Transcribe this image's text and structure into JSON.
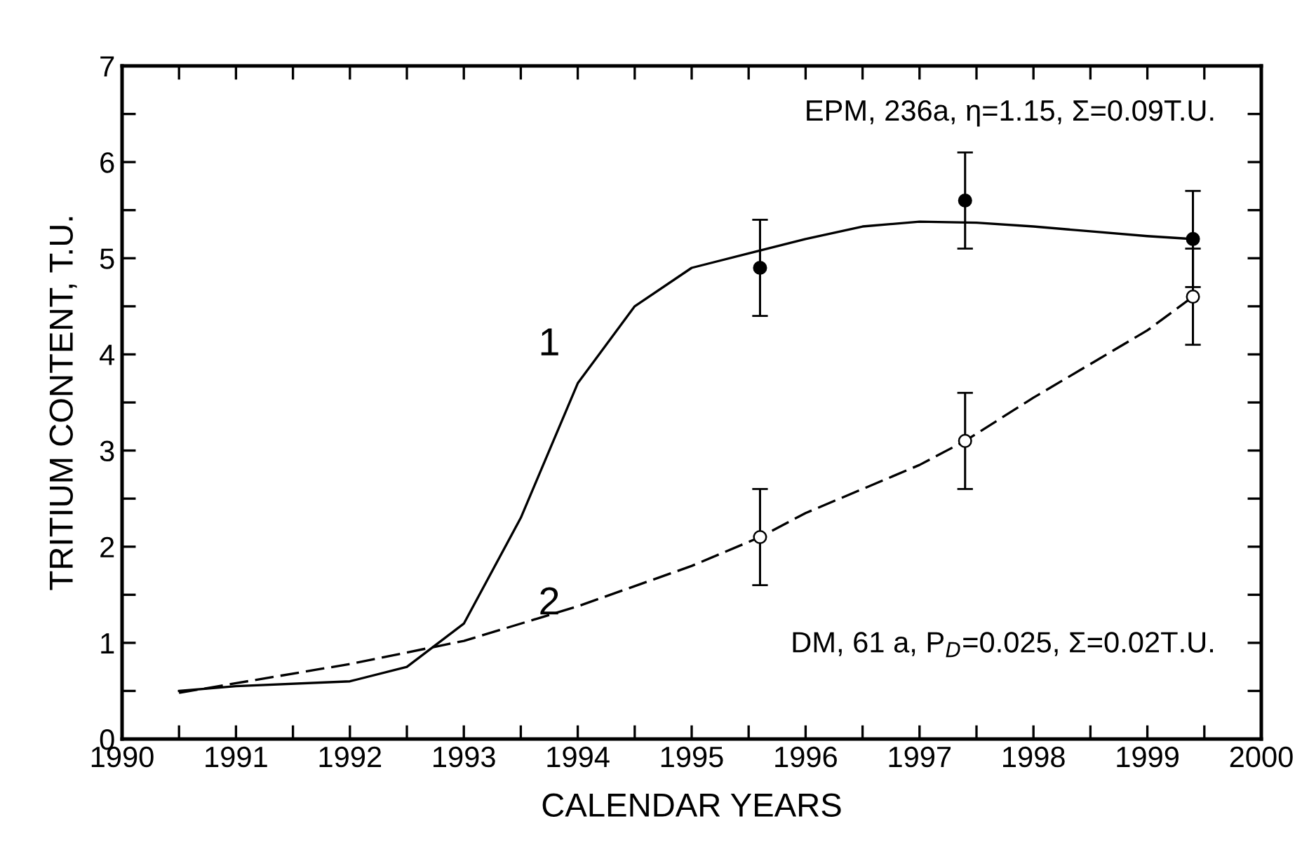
{
  "chart_data": {
    "type": "line",
    "xlabel": "CALENDAR YEARS",
    "ylabel": "TRITIUM CONTENT, T.U.",
    "xlim": [
      1990,
      2000
    ],
    "ylim": [
      0,
      7
    ],
    "xticks": [
      1990,
      {
        "value": 1990.5,
        "label": null
      },
      1991,
      {
        "value": 1991.5,
        "label": null
      },
      1992,
      {
        "value": 1992.5,
        "label": null
      },
      1993,
      {
        "value": 1993.5,
        "label": null
      },
      1994,
      {
        "value": 1994.5,
        "label": null
      },
      1995,
      {
        "value": 1995.5,
        "label": null
      },
      1996,
      {
        "value": 1996.5,
        "label": null
      },
      1997,
      {
        "value": 1997.5,
        "label": null
      },
      1998,
      {
        "value": 1998.5,
        "label": null
      },
      1999,
      {
        "value": 1999.5,
        "label": null
      },
      2000
    ],
    "yticks": [
      0,
      {
        "value": 0.5,
        "label": null
      },
      1,
      {
        "value": 1.5,
        "label": null
      },
      2,
      {
        "value": 2.5,
        "label": null
      },
      3,
      {
        "value": 3.5,
        "label": null
      },
      4,
      {
        "value": 4.5,
        "label": null
      },
      5,
      {
        "value": 5.5,
        "label": null
      },
      6,
      {
        "value": 6.5,
        "label": null
      },
      7
    ],
    "grid": false,
    "series": [
      {
        "color": "#000000",
        "line_style": "solid",
        "marker": "none",
        "x": [
          1990.5,
          1991,
          1992,
          1992.5,
          1993,
          1993.5,
          1994,
          1994.5,
          1995,
          1995.5,
          1996,
          1996.5,
          1997,
          1997.5,
          1998,
          1998.5,
          1999,
          1999.4
        ],
        "values": [
          0.5,
          0.55,
          0.6,
          0.75,
          1.2,
          2.3,
          3.7,
          4.5,
          4.9,
          5.05,
          5.2,
          5.33,
          5.38,
          5.37,
          5.33,
          5.28,
          5.23,
          5.2
        ]
      },
      {
        "color": "#000000",
        "line_style": "dashed",
        "marker": "none",
        "x": [
          1990.5,
          1991,
          1992,
          1993,
          1994,
          1995,
          1995.6,
          1996,
          1997,
          1997.4,
          1998,
          1999,
          1999.4
        ],
        "values": [
          0.48,
          0.58,
          0.78,
          1.02,
          1.38,
          1.8,
          2.1,
          2.35,
          2.85,
          3.1,
          3.55,
          4.25,
          4.6
        ]
      },
      {
        "type": "scatter",
        "color": "#000000",
        "marker": "circle",
        "x": [
          1995.6,
          1997.4,
          1999.4
        ],
        "values": [
          4.9,
          5.6,
          5.2
        ],
        "errors": [
          0.5,
          0.5,
          0.5
        ]
      },
      {
        "type": "scatter",
        "color": "#ffffff",
        "marker": "circle",
        "x": [
          1995.6,
          1997.4,
          1999.4
        ],
        "values": [
          2.1,
          3.1,
          4.6
        ],
        "errors": [
          0.5,
          0.5,
          0.5
        ]
      }
    ],
    "annotations": [
      "1",
      "2",
      "EPM, 236a, η=1.15, Σ=0.09T.U.",
      "DM, 61 a, P$_{D}$=0.025, Σ=0.02T.U."
    ]
  }
}
